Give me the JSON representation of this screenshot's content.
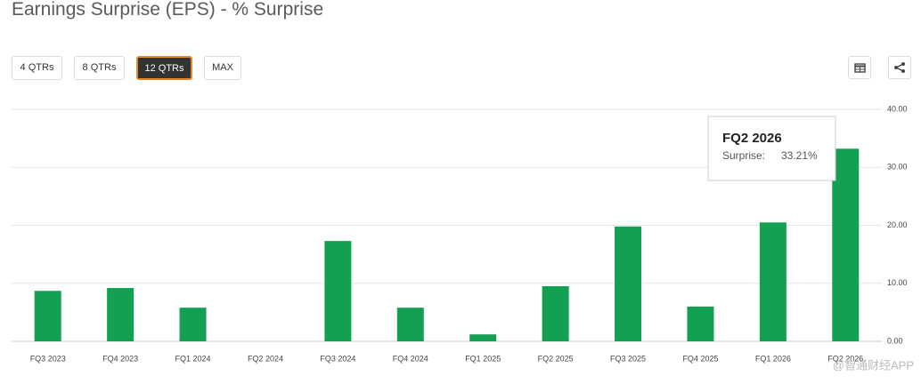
{
  "title": "Earnings Surprise (EPS) - % Surprise",
  "controls": {
    "buttons": [
      "4 QTRs",
      "8 QTRs",
      "12 QTRs",
      "MAX"
    ],
    "active": 2
  },
  "chart_data": {
    "type": "bar",
    "categories": [
      "FQ3 2023",
      "FQ4 2023",
      "FQ1 2024",
      "FQ2 2024",
      "FQ3 2024",
      "FQ4 2024",
      "FQ1 2025",
      "FQ2 2025",
      "FQ3 2025",
      "FQ4 2025",
      "FQ1 2026",
      "FQ2 2026"
    ],
    "values": [
      8.7,
      9.2,
      5.8,
      0,
      17.3,
      5.8,
      1.2,
      9.5,
      19.8,
      6.0,
      20.5,
      33.21
    ],
    "value_labels": [
      null,
      null,
      null,
      null,
      null,
      null,
      null,
      null,
      null,
      null,
      null,
      "33.21%"
    ],
    "color": "#13a052",
    "ylim": [
      0,
      40
    ],
    "yticks": [
      {
        "value": 0,
        "label": "0.00"
      },
      {
        "value": 10,
        "label": "10.00"
      },
      {
        "value": 20,
        "label": "20.00"
      },
      {
        "value": 30,
        "label": "30.00"
      },
      {
        "value": 40,
        "label": "40.00"
      }
    ],
    "grid": true,
    "tooltip_label": "Surprise:"
  },
  "watermark": "@智通财经APP"
}
